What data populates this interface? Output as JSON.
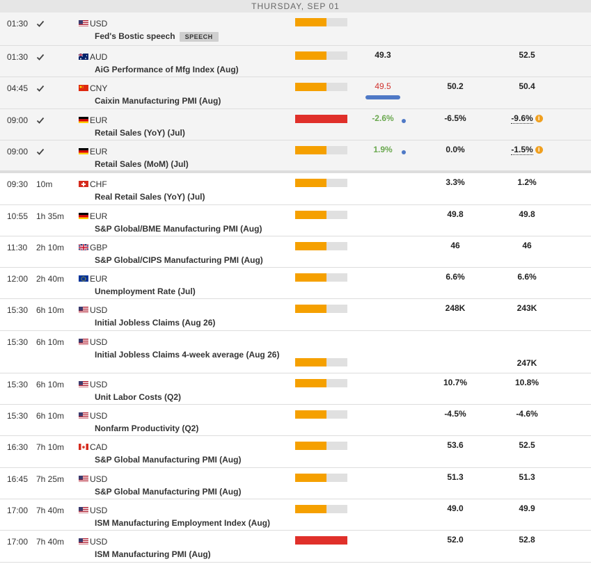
{
  "day_label": "THURSDAY, SEP 01",
  "colors": {
    "medium": "#f5a000",
    "high": "#e0302a",
    "track": "#e0e0e0",
    "good": "#6aa84f",
    "bad": "#d0312d",
    "marker": "#4f79c6"
  },
  "events": [
    {
      "time": "01:30",
      "remain": "",
      "done": true,
      "flag": "us",
      "currency": "USD",
      "name": "Fed's Bostic speech",
      "badge": "SPEECH",
      "impact": "medium",
      "impact_level": 0.6,
      "actual": "",
      "consensus": "",
      "previous": ""
    },
    {
      "time": "01:30",
      "remain": "",
      "done": true,
      "flag": "au",
      "currency": "AUD",
      "name": "AiG Performance of Mfg Index (Aug)",
      "badge": "",
      "impact": "medium",
      "impact_level": 0.6,
      "actual": "49.3",
      "consensus": "",
      "previous": "52.5"
    },
    {
      "time": "04:45",
      "remain": "",
      "done": true,
      "flag": "cn",
      "currency": "CNY",
      "name": "Caixin Manufacturing PMI (Aug)",
      "badge": "",
      "impact": "medium",
      "impact_level": 0.6,
      "actual": "49.5",
      "actual_tone": "bad",
      "marker": "pill",
      "consensus": "50.2",
      "previous": "50.4"
    },
    {
      "time": "09:00",
      "remain": "",
      "done": true,
      "flag": "de",
      "currency": "EUR",
      "name": "Retail Sales (YoY) (Jul)",
      "badge": "",
      "impact": "high",
      "impact_level": 1.0,
      "actual": "-2.6%",
      "actual_tone": "good",
      "marker": "dot",
      "consensus": "-6.5%",
      "previous": "-9.6%",
      "revised": true
    },
    {
      "time": "09:00",
      "remain": "",
      "done": true,
      "flag": "de",
      "currency": "EUR",
      "name": "Retail Sales (MoM) (Jul)",
      "badge": "",
      "impact": "medium",
      "impact_level": 0.6,
      "actual": "1.9%",
      "actual_tone": "good",
      "marker": "dot",
      "consensus": "0.0%",
      "previous": "-1.5%",
      "revised": true
    },
    {
      "time": "09:30",
      "remain": "10m",
      "done": false,
      "flag": "ch",
      "currency": "CHF",
      "name": "Real Retail Sales (YoY) (Jul)",
      "badge": "",
      "impact": "medium",
      "impact_level": 0.6,
      "actual": "",
      "consensus": "3.3%",
      "previous": "1.2%"
    },
    {
      "time": "10:55",
      "remain": "1h 35m",
      "done": false,
      "flag": "de",
      "currency": "EUR",
      "name": "S&P Global/BME Manufacturing PMI (Aug)",
      "badge": "",
      "impact": "medium",
      "impact_level": 0.6,
      "actual": "",
      "consensus": "49.8",
      "previous": "49.8"
    },
    {
      "time": "11:30",
      "remain": "2h 10m",
      "done": false,
      "flag": "gb",
      "currency": "GBP",
      "name": "S&P Global/CIPS Manufacturing PMI (Aug)",
      "badge": "",
      "impact": "medium",
      "impact_level": 0.6,
      "actual": "",
      "consensus": "46",
      "previous": "46"
    },
    {
      "time": "12:00",
      "remain": "2h 40m",
      "done": false,
      "flag": "eu",
      "currency": "EUR",
      "name": "Unemployment Rate (Jul)",
      "badge": "",
      "impact": "medium",
      "impact_level": 0.6,
      "actual": "",
      "consensus": "6.6%",
      "previous": "6.6%"
    },
    {
      "time": "15:30",
      "remain": "6h 10m",
      "done": false,
      "flag": "us",
      "currency": "USD",
      "name": "Initial Jobless Claims (Aug 26)",
      "badge": "",
      "impact": "medium",
      "impact_level": 0.6,
      "actual": "",
      "consensus": "248K",
      "previous": "243K"
    },
    {
      "time": "15:30",
      "remain": "6h 10m",
      "done": false,
      "flag": "us",
      "currency": "USD",
      "name": "Initial Jobless Claims 4-week average (Aug 26)",
      "badge": "",
      "impact": "medium",
      "impact_level": 0.6,
      "actual": "",
      "consensus": "",
      "previous": "247K",
      "tall": true
    },
    {
      "time": "15:30",
      "remain": "6h 10m",
      "done": false,
      "flag": "us",
      "currency": "USD",
      "name": "Unit Labor Costs (Q2)",
      "badge": "",
      "impact": "medium",
      "impact_level": 0.6,
      "actual": "",
      "consensus": "10.7%",
      "previous": "10.8%"
    },
    {
      "time": "15:30",
      "remain": "6h 10m",
      "done": false,
      "flag": "us",
      "currency": "USD",
      "name": "Nonfarm Productivity (Q2)",
      "badge": "",
      "impact": "medium",
      "impact_level": 0.6,
      "actual": "",
      "consensus": "-4.5%",
      "previous": "-4.6%"
    },
    {
      "time": "16:30",
      "remain": "7h 10m",
      "done": false,
      "flag": "ca",
      "currency": "CAD",
      "name": "S&P Global Manufacturing PMI (Aug)",
      "badge": "",
      "impact": "medium",
      "impact_level": 0.6,
      "actual": "",
      "consensus": "53.6",
      "previous": "52.5"
    },
    {
      "time": "16:45",
      "remain": "7h 25m",
      "done": false,
      "flag": "us",
      "currency": "USD",
      "name": "S&P Global Manufacturing PMI (Aug)",
      "badge": "",
      "impact": "medium",
      "impact_level": 0.6,
      "actual": "",
      "consensus": "51.3",
      "previous": "51.3"
    },
    {
      "time": "17:00",
      "remain": "7h 40m",
      "done": false,
      "flag": "us",
      "currency": "USD",
      "name": "ISM Manufacturing Employment Index (Aug)",
      "badge": "",
      "impact": "medium",
      "impact_level": 0.6,
      "actual": "",
      "consensus": "49.0",
      "previous": "49.9"
    },
    {
      "time": "17:00",
      "remain": "7h 40m",
      "done": false,
      "flag": "us",
      "currency": "USD",
      "name": "ISM Manufacturing PMI (Aug)",
      "badge": "",
      "impact": "high",
      "impact_level": 1.0,
      "actual": "",
      "consensus": "52.0",
      "previous": "52.8"
    }
  ]
}
